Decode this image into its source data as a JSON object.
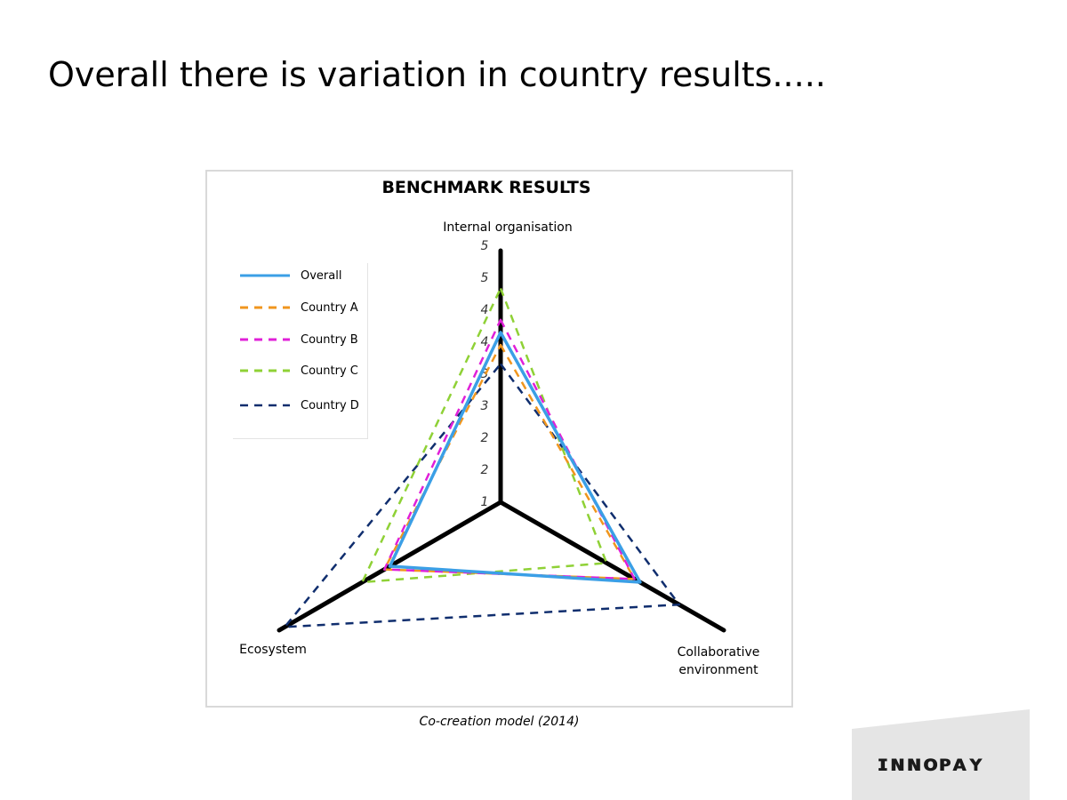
{
  "slide": {
    "title": "Overall there is variation in country results.....",
    "caption": "Co-creation model (2014)"
  },
  "logo": {
    "text": "innopay"
  },
  "chart_data": {
    "type": "radar",
    "title": "BENCHMARK RESULTS",
    "axes": [
      "Internal organisation",
      "Collaborative environment",
      "Ecosystem"
    ],
    "scale_tick_labels": [
      "1",
      "2",
      "2",
      "3",
      "3",
      "4",
      "4",
      "5",
      "5"
    ],
    "range": [
      1,
      5
    ],
    "legend_position": "left",
    "series": [
      {
        "name": "Overall",
        "values": [
          3.7,
          3.5,
          3.0
        ],
        "color": "#3b9fe6",
        "dash": "solid"
      },
      {
        "name": "Country A",
        "values": [
          3.5,
          3.4,
          3.1
        ],
        "color": "#f0961e",
        "dash": "dashed"
      },
      {
        "name": "Country B",
        "values": [
          3.9,
          3.4,
          3.1
        ],
        "color": "#e020d8",
        "dash": "dashed"
      },
      {
        "name": "Country C",
        "values": [
          4.4,
          2.9,
          3.5
        ],
        "color": "#8fd136",
        "dash": "dashed"
      },
      {
        "name": "Country D",
        "values": [
          3.2,
          4.2,
          4.9
        ],
        "color": "#102e6e",
        "dash": "dashed"
      }
    ]
  }
}
